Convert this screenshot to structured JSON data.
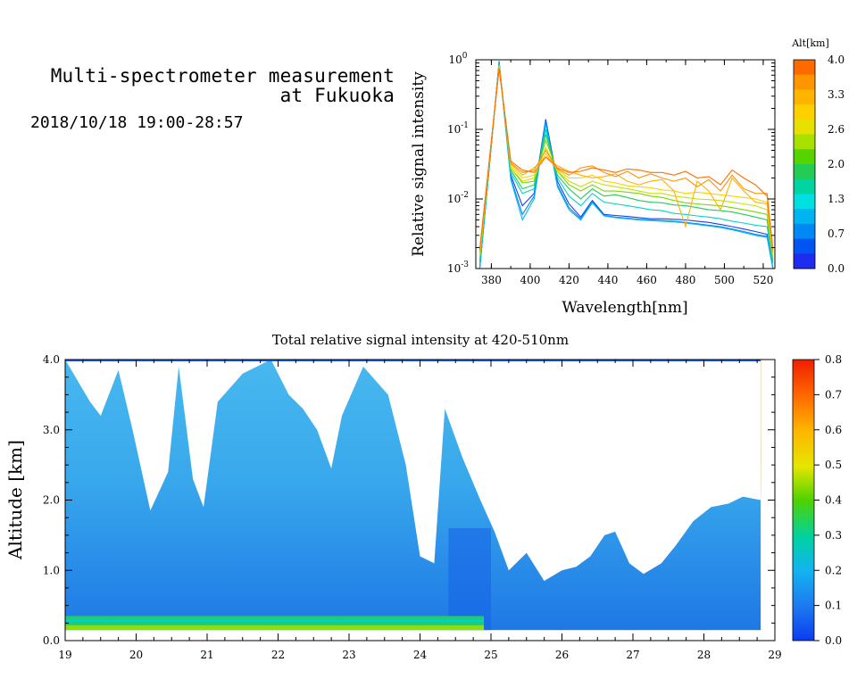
{
  "header": {
    "title_line1": "Multi-spectrometer measurement",
    "title_line2": "at Fukuoka",
    "date_range": "2018/10/18 19:00-28:57"
  },
  "chart_data": [
    {
      "type": "line",
      "title": "",
      "xlabel": "Wavelength[nm]",
      "ylabel": "Relative signal intensity",
      "xlim": [
        372,
        526
      ],
      "ylim": [
        0.001,
        1
      ],
      "yscale": "log",
      "x_ticks": [
        380,
        400,
        420,
        440,
        460,
        480,
        500,
        520
      ],
      "y_ticks": [
        {
          "value": 0.001,
          "base": "10",
          "exp": "-3"
        },
        {
          "value": 0.01,
          "base": "10",
          "exp": "-2"
        },
        {
          "value": 0.1,
          "base": "10",
          "exp": "-1"
        },
        {
          "value": 1,
          "base": "10",
          "exp": "0"
        }
      ],
      "x": [
        374,
        384,
        390,
        396,
        402,
        408,
        414,
        420,
        426,
        432,
        438,
        444,
        450,
        456,
        462,
        468,
        474,
        480,
        486,
        492,
        498,
        504,
        510,
        516,
        522,
        525
      ],
      "colorbar": {
        "label": "Alt[km]",
        "ticks": [
          "4.0",
          "3.3",
          "2.6",
          "2.0",
          "1.3",
          "0.7",
          "0.0"
        ],
        "colors": [
          "#ff6a00",
          "#ff9500",
          "#ffb400",
          "#ffd000",
          "#e8e000",
          "#a8e000",
          "#55d400",
          "#22cc55",
          "#00d4a0",
          "#00e0e0",
          "#00b4f0",
          "#0088f5",
          "#0055f0",
          "#1e2cf0"
        ]
      },
      "series": [
        {
          "altitude": 0.0,
          "color": "#1e3cf0",
          "values": [
            0.001,
            0.95,
            0.022,
            0.008,
            0.012,
            0.14,
            0.018,
            0.0085,
            0.0055,
            0.0095,
            0.006,
            0.0058,
            0.0056,
            0.0054,
            0.0052,
            0.0052,
            0.0051,
            0.005,
            0.0048,
            0.0046,
            0.0043,
            0.004,
            0.0037,
            0.0034,
            0.0031,
            0.001
          ]
        },
        {
          "altitude": 0.5,
          "color": "#0088f5",
          "values": [
            0.001,
            0.92,
            0.02,
            0.006,
            0.011,
            0.13,
            0.016,
            0.0075,
            0.0052,
            0.0092,
            0.0058,
            0.0055,
            0.0053,
            0.0051,
            0.005,
            0.0049,
            0.0048,
            0.0046,
            0.0044,
            0.0042,
            0.004,
            0.0037,
            0.0034,
            0.0031,
            0.0029,
            0.001
          ]
        },
        {
          "altitude": 0.9,
          "color": "#00b4f0",
          "values": [
            0.001,
            0.9,
            0.019,
            0.005,
            0.01,
            0.12,
            0.015,
            0.007,
            0.005,
            0.0088,
            0.0057,
            0.0054,
            0.0052,
            0.005,
            0.0049,
            0.0048,
            0.0047,
            0.0045,
            0.0043,
            0.0041,
            0.0039,
            0.0036,
            0.0033,
            0.003,
            0.0028,
            0.001
          ]
        },
        {
          "altitude": 1.3,
          "color": "#00d4c8",
          "values": [
            0.0012,
            0.88,
            0.024,
            0.012,
            0.014,
            0.1,
            0.02,
            0.011,
            0.008,
            0.012,
            0.009,
            0.0085,
            0.008,
            0.0075,
            0.007,
            0.0068,
            0.0062,
            0.006,
            0.0057,
            0.0055,
            0.0052,
            0.0048,
            0.0045,
            0.0042,
            0.004,
            0.0012
          ]
        },
        {
          "altitude": 1.7,
          "color": "#22cc55",
          "values": [
            0.0013,
            0.85,
            0.026,
            0.014,
            0.016,
            0.085,
            0.022,
            0.014,
            0.01,
            0.014,
            0.011,
            0.0115,
            0.0105,
            0.0095,
            0.009,
            0.0088,
            0.0082,
            0.008,
            0.0075,
            0.007,
            0.0068,
            0.0065,
            0.006,
            0.0055,
            0.005,
            0.0013
          ]
        },
        {
          "altitude": 2.1,
          "color": "#77d800",
          "values": [
            0.0014,
            0.84,
            0.028,
            0.017,
            0.018,
            0.07,
            0.025,
            0.016,
            0.013,
            0.016,
            0.013,
            0.013,
            0.0125,
            0.012,
            0.011,
            0.0105,
            0.0095,
            0.0088,
            0.0085,
            0.0082,
            0.008,
            0.0075,
            0.007,
            0.0065,
            0.006,
            0.0014
          ]
        },
        {
          "altitude": 2.6,
          "color": "#c8e000",
          "values": [
            0.0015,
            0.82,
            0.028,
            0.018,
            0.02,
            0.055,
            0.025,
            0.018,
            0.015,
            0.018,
            0.016,
            0.015,
            0.014,
            0.013,
            0.012,
            0.012,
            0.011,
            0.0105,
            0.01,
            0.0098,
            0.0095,
            0.009,
            0.0085,
            0.008,
            0.007,
            0.0015
          ]
        },
        {
          "altitude": 3.0,
          "color": "#ffd000",
          "values": [
            0.0016,
            0.8,
            0.03,
            0.02,
            0.022,
            0.045,
            0.026,
            0.02,
            0.02,
            0.022,
            0.018,
            0.017,
            0.0155,
            0.015,
            0.0145,
            0.0135,
            0.013,
            0.012,
            0.0125,
            0.012,
            0.0115,
            0.011,
            0.0105,
            0.01,
            0.009,
            0.0016
          ]
        },
        {
          "altitude": 3.4,
          "color": "#ffb000",
          "values": [
            0.0017,
            0.78,
            0.032,
            0.022,
            0.028,
            0.04,
            0.03,
            0.025,
            0.022,
            0.02,
            0.021,
            0.023,
            0.018,
            0.016,
            0.018,
            0.019,
            0.013,
            0.004,
            0.018,
            0.013,
            0.007,
            0.02,
            0.013,
            0.009,
            0.0085,
            0.0017
          ]
        },
        {
          "altitude": 3.7,
          "color": "#ff9000",
          "values": [
            0.0018,
            0.76,
            0.033,
            0.024,
            0.026,
            0.05,
            0.027,
            0.022,
            0.028,
            0.03,
            0.024,
            0.021,
            0.025,
            0.02,
            0.023,
            0.02,
            0.018,
            0.02,
            0.015,
            0.019,
            0.013,
            0.022,
            0.014,
            0.012,
            0.012,
            0.0018
          ]
        },
        {
          "altitude": 4.0,
          "color": "#ff7000",
          "values": [
            0.0019,
            0.74,
            0.035,
            0.026,
            0.024,
            0.04,
            0.028,
            0.024,
            0.025,
            0.028,
            0.026,
            0.024,
            0.027,
            0.026,
            0.024,
            0.024,
            0.022,
            0.025,
            0.02,
            0.021,
            0.016,
            0.026,
            0.02,
            0.016,
            0.011,
            0.0019
          ]
        }
      ]
    },
    {
      "type": "heatmap",
      "title": "Total relative signal intensity at 420-510nm",
      "xlabel": "",
      "ylabel": "Altitude [km]",
      "xlim": [
        19,
        29
      ],
      "ylim": [
        0,
        4
      ],
      "x_ticks": [
        "19",
        "20",
        "21",
        "22",
        "23",
        "24",
        "25",
        "26",
        "27",
        "28",
        "29"
      ],
      "y_ticks": [
        "0.0",
        "1.0",
        "2.0",
        "3.0",
        "4.0"
      ],
      "data_extent": {
        "time": [
          19.0,
          28.8
        ],
        "altitude": [
          0.15,
          4.0
        ]
      },
      "colorbar": {
        "ticks": [
          "0.8",
          "0.7",
          "0.6",
          "0.5",
          "0.4",
          "0.3",
          "0.2",
          "0.1",
          "0.0"
        ],
        "range": [
          0,
          0.8
        ]
      },
      "columns": [
        {
          "t": 19.0,
          "cloud_base": 4.0
        },
        {
          "t": 19.35,
          "cloud_base": 3.4
        },
        {
          "t": 19.5,
          "cloud_base": 3.2
        },
        {
          "t": 19.75,
          "cloud_base": 3.85
        },
        {
          "t": 19.95,
          "cloud_base": 3.0
        },
        {
          "t": 20.2,
          "cloud_base": 1.85
        },
        {
          "t": 20.45,
          "cloud_base": 2.4
        },
        {
          "t": 20.6,
          "cloud_base": 3.9
        },
        {
          "t": 20.8,
          "cloud_base": 2.3
        },
        {
          "t": 20.95,
          "cloud_base": 1.9
        },
        {
          "t": 21.15,
          "cloud_base": 3.4
        },
        {
          "t": 21.5,
          "cloud_base": 3.8
        },
        {
          "t": 21.9,
          "cloud_base": 4.0
        },
        {
          "t": 22.15,
          "cloud_base": 3.5
        },
        {
          "t": 22.35,
          "cloud_base": 3.3
        },
        {
          "t": 22.55,
          "cloud_base": 3.0
        },
        {
          "t": 22.75,
          "cloud_base": 2.45
        },
        {
          "t": 22.9,
          "cloud_base": 3.2
        },
        {
          "t": 23.2,
          "cloud_base": 3.9
        },
        {
          "t": 23.55,
          "cloud_base": 3.5
        },
        {
          "t": 23.8,
          "cloud_base": 2.5
        },
        {
          "t": 24.0,
          "cloud_base": 1.2
        },
        {
          "t": 24.2,
          "cloud_base": 1.1
        },
        {
          "t": 24.35,
          "cloud_base": 3.3
        },
        {
          "t": 24.6,
          "cloud_base": 2.6
        },
        {
          "t": 24.85,
          "cloud_base": 2.0
        },
        {
          "t": 25.05,
          "cloud_base": 1.55
        },
        {
          "t": 25.25,
          "cloud_base": 1.0
        },
        {
          "t": 25.5,
          "cloud_base": 1.25
        },
        {
          "t": 25.75,
          "cloud_base": 0.85
        },
        {
          "t": 26.0,
          "cloud_base": 1.0
        },
        {
          "t": 26.2,
          "cloud_base": 1.05
        },
        {
          "t": 26.4,
          "cloud_base": 1.2
        },
        {
          "t": 26.6,
          "cloud_base": 1.5
        },
        {
          "t": 26.75,
          "cloud_base": 1.55
        },
        {
          "t": 26.95,
          "cloud_base": 1.1
        },
        {
          "t": 27.15,
          "cloud_base": 0.95
        },
        {
          "t": 27.4,
          "cloud_base": 1.1
        },
        {
          "t": 27.6,
          "cloud_base": 1.35
        },
        {
          "t": 27.85,
          "cloud_base": 1.7
        },
        {
          "t": 28.1,
          "cloud_base": 1.9
        },
        {
          "t": 28.35,
          "cloud_base": 1.95
        },
        {
          "t": 28.55,
          "cloud_base": 2.05
        },
        {
          "t": 28.8,
          "cloud_base": 2.0
        }
      ]
    }
  ]
}
